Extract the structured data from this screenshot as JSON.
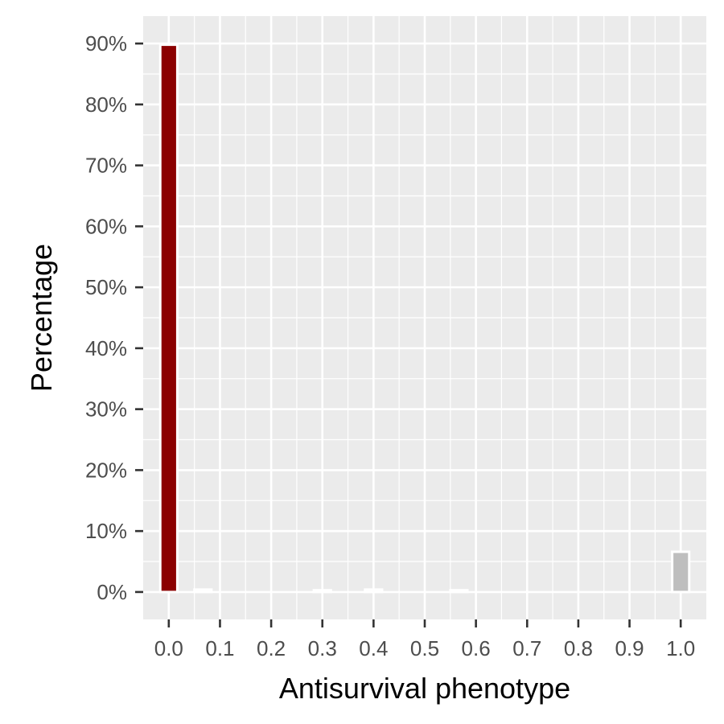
{
  "chart_data": {
    "type": "bar",
    "xlabel": "Antisurvival phenotype",
    "ylabel": "Percentage",
    "xlim": [
      -0.05,
      1.05
    ],
    "ylim": [
      -4.5,
      94.5
    ],
    "x_ticks": [
      0.0,
      0.1,
      0.2,
      0.3,
      0.4,
      0.5,
      0.6,
      0.7,
      0.8,
      0.9,
      1.0
    ],
    "x_tick_labels": [
      "0.0",
      "0.1",
      "0.2",
      "0.3",
      "0.4",
      "0.5",
      "0.6",
      "0.7",
      "0.8",
      "0.9",
      "1.0"
    ],
    "y_ticks": [
      0,
      10,
      20,
      30,
      40,
      50,
      60,
      70,
      80,
      90
    ],
    "y_tick_labels": [
      "0%",
      "10%",
      "20%",
      "30%",
      "40%",
      "50%",
      "60%",
      "70%",
      "80%",
      "90%"
    ],
    "bin_width": 0.0333,
    "bars": [
      {
        "x": 0.0,
        "value": 89.8,
        "color": "#8b0000"
      },
      {
        "x": 0.0667,
        "value": 0.4,
        "color": "#bebebe"
      },
      {
        "x": 0.3,
        "value": 0.3,
        "color": "#bebebe"
      },
      {
        "x": 0.4,
        "value": 0.4,
        "color": "#bebebe"
      },
      {
        "x": 0.5667,
        "value": 0.3,
        "color": "#bebebe"
      },
      {
        "x": 1.0,
        "value": 6.6,
        "color": "#bebebe"
      }
    ],
    "grid": true,
    "panel_background": "#ebebeb",
    "grid_color": "#ffffff",
    "bar_outline": "#ffffff"
  }
}
